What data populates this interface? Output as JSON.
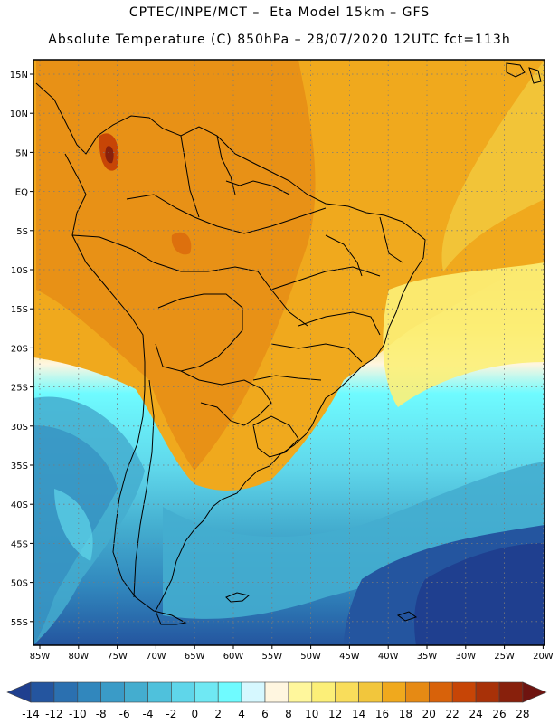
{
  "header": {
    "line1": "CPTEC/INPE/MCT –  Eta Model 15km – GFS",
    "line2": "Absolute Temperature (C) 850hPa – 28/07/2020 12UTC fct=113h"
  },
  "map": {
    "lat_labels": [
      "15N",
      "10N",
      "5N",
      "EQ",
      "5S",
      "10S",
      "15S",
      "20S",
      "25S",
      "30S",
      "35S",
      "40S",
      "45S",
      "50S",
      "55S"
    ],
    "lon_labels": [
      "85W",
      "80W",
      "75W",
      "70W",
      "65W",
      "60W",
      "55W",
      "50W",
      "45W",
      "40W",
      "35W",
      "30W",
      "25W",
      "20W"
    ],
    "gridlines": "dotted"
  },
  "colorbar": {
    "ticks": [
      "-14",
      "-12",
      "-10",
      "-8",
      "-6",
      "-4",
      "-2",
      "0",
      "2",
      "4",
      "6",
      "8",
      "10",
      "12",
      "14",
      "16",
      "18",
      "20",
      "22",
      "24",
      "26",
      "28"
    ],
    "colors": [
      "#1f3f8f",
      "#24559f",
      "#2b70b0",
      "#3187bd",
      "#3a9bc7",
      "#44adcf",
      "#4fc1dc",
      "#5fd6ea",
      "#6fe8f3",
      "#6ffbff",
      "#d6f8ff",
      "#fff6e0",
      "#fff79c",
      "#fcef78",
      "#f9dd5b",
      "#f2c63c",
      "#f0a91d",
      "#e68a14",
      "#d8620a",
      "#c74506",
      "#a83108",
      "#88200c",
      "#6e1410"
    ]
  }
}
